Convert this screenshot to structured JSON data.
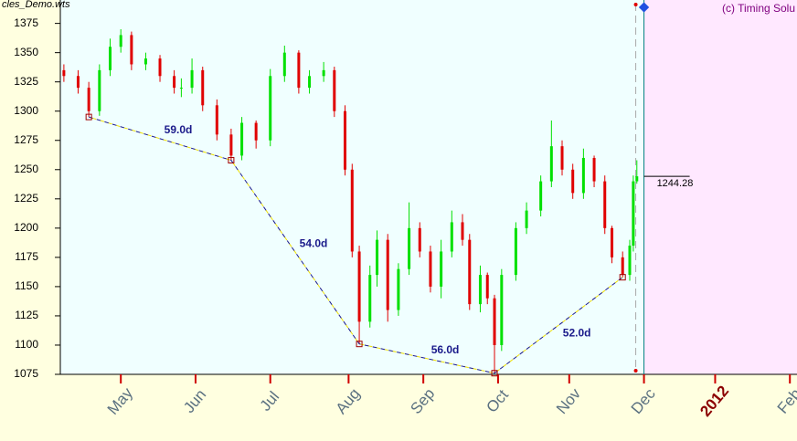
{
  "chart_data": {
    "type": "candlestick",
    "title": "cles_Demo.wts",
    "copyright": "(c) Timing Solu",
    "x": [
      0,
      4,
      7,
      10,
      13,
      16,
      19,
      23,
      27,
      31,
      33,
      36,
      39,
      43,
      47,
      50,
      54,
      58,
      62,
      66,
      69,
      73,
      76,
      79,
      81,
      83,
      86,
      88,
      91,
      94,
      97,
      100,
      103,
      106,
      109,
      112,
      114,
      117,
      119,
      121,
      123,
      127,
      130,
      134,
      137,
      140,
      143,
      146,
      149,
      152,
      154,
      157,
      159,
      160,
      161
    ],
    "open": [
      1335,
      1330,
      1320,
      1300,
      1335,
      1355,
      1365,
      1340,
      1345,
      1330,
      1320,
      1320,
      1335,
      1305,
      1280,
      1262,
      1290,
      1275,
      1330,
      1350,
      1320,
      1330,
      1335,
      1300,
      1250,
      1180,
      1120,
      1160,
      1190,
      1130,
      1165,
      1200,
      1180,
      1150,
      1180,
      1205,
      1190,
      1135,
      1160,
      1140,
      1100,
      1160,
      1200,
      1215,
      1240,
      1270,
      1250,
      1230,
      1260,
      1240,
      1200,
      1175,
      1160,
      1185,
      1240
    ],
    "close": [
      1330,
      1320,
      1300,
      1335,
      1355,
      1365,
      1340,
      1345,
      1330,
      1320,
      1320,
      1335,
      1305,
      1280,
      1262,
      1290,
      1275,
      1330,
      1350,
      1320,
      1330,
      1335,
      1300,
      1250,
      1180,
      1120,
      1160,
      1190,
      1130,
      1165,
      1200,
      1180,
      1150,
      1180,
      1205,
      1190,
      1135,
      1160,
      1140,
      1100,
      1160,
      1200,
      1215,
      1240,
      1270,
      1250,
      1230,
      1260,
      1240,
      1200,
      1175,
      1160,
      1185,
      1240,
      1244.28
    ],
    "high": [
      1340,
      1335,
      1325,
      1340,
      1362,
      1370,
      1368,
      1350,
      1348,
      1335,
      1328,
      1345,
      1338,
      1310,
      1285,
      1295,
      1292,
      1336,
      1356,
      1352,
      1335,
      1342,
      1338,
      1305,
      1255,
      1185,
      1168,
      1198,
      1195,
      1170,
      1222,
      1205,
      1185,
      1190,
      1215,
      1212,
      1195,
      1168,
      1162,
      1143,
      1165,
      1205,
      1222,
      1245,
      1292,
      1275,
      1255,
      1268,
      1262,
      1245,
      1202,
      1180,
      1190,
      1245,
      1258
    ],
    "low": [
      1325,
      1315,
      1295,
      1296,
      1330,
      1350,
      1335,
      1335,
      1325,
      1315,
      1312,
      1315,
      1300,
      1275,
      1258,
      1258,
      1268,
      1270,
      1325,
      1315,
      1315,
      1325,
      1295,
      1245,
      1175,
      1101,
      1115,
      1150,
      1120,
      1125,
      1160,
      1175,
      1145,
      1140,
      1175,
      1185,
      1130,
      1128,
      1135,
      1076,
      1095,
      1155,
      1195,
      1210,
      1235,
      1245,
      1225,
      1225,
      1235,
      1195,
      1170,
      1158,
      1155,
      1180,
      1238
    ],
    "up_color": "#00e000",
    "down_color": "#e00000",
    "xlim": [
      -1,
      206
    ],
    "ylim": [
      1075,
      1395
    ],
    "yticks": [
      1075,
      1100,
      1125,
      1150,
      1175,
      1200,
      1225,
      1250,
      1275,
      1300,
      1325,
      1350,
      1375
    ],
    "xticks": [
      {
        "value": 16,
        "label": "May"
      },
      {
        "value": 37,
        "label": "Jun"
      },
      {
        "value": 58,
        "label": "Jul"
      },
      {
        "value": 80,
        "label": "Aug"
      },
      {
        "value": 101,
        "label": "Sep"
      },
      {
        "value": 122,
        "label": "Oct"
      },
      {
        "value": 142,
        "label": "Nov"
      },
      {
        "value": 163,
        "label": "Dec"
      },
      {
        "value": 183,
        "label": "2012"
      },
      {
        "value": 204,
        "label": "Feb"
      }
    ],
    "highlight_ticks": [
      8
    ],
    "highlight_color": "#8b0000",
    "today": 163,
    "pivots": {
      "x": [
        7,
        47,
        83,
        121,
        157
      ],
      "values": [
        1295,
        1258,
        1101,
        1076,
        1158
      ]
    },
    "cycle_labels": [
      "59.0d",
      "54.0d",
      "56.0d",
      "52.0d"
    ],
    "last_price": 1244.28
  }
}
